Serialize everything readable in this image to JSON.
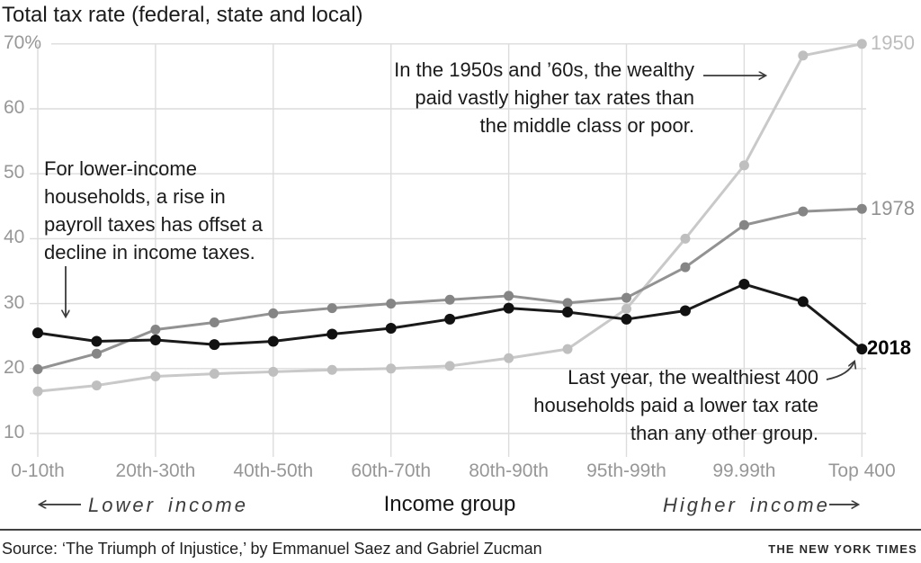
{
  "title": "Total tax rate (federal, state and local)",
  "chart_data": {
    "type": "line",
    "title": "Total tax rate (federal, state and local)",
    "xlabel": "Income group",
    "ylabel": "Total tax rate (%)",
    "ylim": [
      10,
      70
    ],
    "grid": true,
    "legend_position": "end-of-line labels at right",
    "categories": [
      "0-10th",
      "",
      "20th-30th",
      "",
      "40th-50th",
      "",
      "60th-70th",
      "",
      "80th-90th",
      "",
      "95th-99th",
      "",
      "99.99th",
      "",
      "Top 400"
    ],
    "x_ticks": [
      {
        "index": 0,
        "label": "0-10th"
      },
      {
        "index": 2,
        "label": "20th-30th"
      },
      {
        "index": 4,
        "label": "40th-50th"
      },
      {
        "index": 6,
        "label": "60th-70th"
      },
      {
        "index": 8,
        "label": "80th-90th"
      },
      {
        "index": 10,
        "label": "95th-99th"
      },
      {
        "index": 12,
        "label": "99.99th"
      },
      {
        "index": 14,
        "label": "Top 400"
      }
    ],
    "y_ticks": [
      {
        "value": 70,
        "label": "70%"
      },
      {
        "value": 60,
        "label": "60"
      },
      {
        "value": 50,
        "label": "50"
      },
      {
        "value": 40,
        "label": "40"
      },
      {
        "value": 30,
        "label": "30"
      },
      {
        "value": 20,
        "label": "20"
      },
      {
        "value": 10,
        "label": "10"
      }
    ],
    "series": [
      {
        "name": "1950",
        "color": "#c9c9c9",
        "dot_color": "#bfbfbf",
        "values": [
          16.5,
          17.4,
          18.8,
          19.2,
          19.5,
          19.8,
          20.0,
          20.4,
          21.6,
          23.0,
          29.2,
          40.0,
          51.3,
          68.2,
          70.0
        ]
      },
      {
        "name": "1978",
        "color": "#929292",
        "dot_color": "#858585",
        "values": [
          19.9,
          22.3,
          26.0,
          27.1,
          28.5,
          29.3,
          30.0,
          30.6,
          31.2,
          30.1,
          30.9,
          35.6,
          42.1,
          44.2,
          44.6
        ]
      },
      {
        "name": "2018",
        "color": "#1a1a1a",
        "dot_color": "#111111",
        "values": [
          25.5,
          24.2,
          24.4,
          23.7,
          24.2,
          25.3,
          26.2,
          27.6,
          29.3,
          28.7,
          27.6,
          28.9,
          33.0,
          30.3,
          23.0
        ]
      }
    ],
    "annotations": [
      {
        "id": "payroll",
        "align": "left",
        "lines": [
          "For lower-income",
          "households, a rise in",
          "payroll taxes has offset a",
          "decline in income taxes."
        ]
      },
      {
        "id": "wealthy",
        "align": "right",
        "lines": [
          "In the 1950s and ’60s, the wealthy",
          "paid vastly higher tax rates than",
          "the middle class or poor."
        ]
      },
      {
        "id": "top400",
        "align": "right",
        "lines": [
          "Last year, the wealthiest 400",
          "households paid a lower tax rate",
          "than any other group."
        ]
      }
    ]
  },
  "axis_notes": {
    "left": "Lower income",
    "center": "Income group",
    "right": "Higher income"
  },
  "footer": {
    "source": "Source: ‘The Triumph of Injustice,’ by Emmanuel Saez and Gabriel Zucman",
    "credit": "THE NEW YORK TIMES"
  }
}
